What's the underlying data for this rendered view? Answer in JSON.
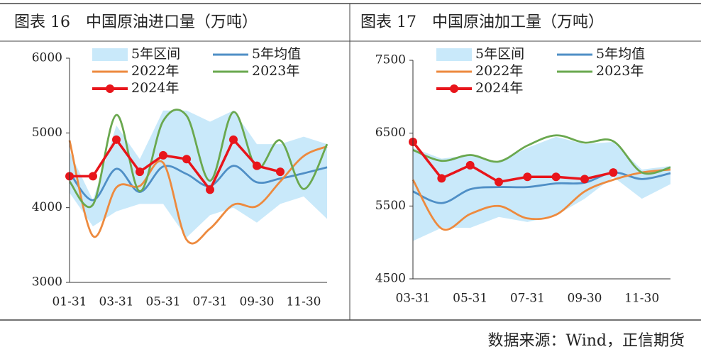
{
  "chart_data": [
    {
      "type": "line",
      "title": "图表 16　中国原油进口量（万吨）",
      "categories": [
        "01-31",
        null,
        "03-31",
        null,
        "05-31",
        null,
        "07-31",
        null,
        "09-30",
        null,
        "11-30",
        null
      ],
      "ylim": [
        3000,
        6000
      ],
      "yticks": [
        3000,
        4000,
        5000,
        6000
      ],
      "series": [
        {
          "name": "5年区间",
          "type": "band",
          "color": "#c9e9fa",
          "low": [
            4200,
            3750,
            3950,
            4050,
            4050,
            3600,
            3900,
            4000,
            3800,
            4050,
            4150,
            3850
          ],
          "high": [
            4750,
            4100,
            5100,
            4650,
            5300,
            5300,
            5150,
            5300,
            4850,
            4850,
            4950,
            4850
          ]
        },
        {
          "name": "5年均值",
          "color": "#4f8fc6",
          "values": [
            4470,
            4100,
            4520,
            4210,
            4550,
            4450,
            4290,
            4560,
            4340,
            4390,
            4460,
            4540
          ]
        },
        {
          "name": "2022年",
          "color": "#ed8a3e",
          "values": [
            4900,
            3620,
            4270,
            4290,
            4600,
            3570,
            3720,
            4040,
            4020,
            4350,
            4690,
            4820
          ]
        },
        {
          "name": "2023年",
          "color": "#6aa84f",
          "values": [
            4350,
            4040,
            5240,
            4220,
            5160,
            5230,
            4360,
            5280,
            4530,
            4900,
            4250,
            4850
          ]
        },
        {
          "name": "2024年",
          "color": "#e8151b",
          "marker": true,
          "values": [
            4420,
            4420,
            4910,
            4480,
            4700,
            4650,
            4240,
            4910,
            4560,
            4480,
            null,
            null
          ]
        }
      ]
    },
    {
      "type": "line",
      "title": "图表 17　中国原油加工量（万吨）",
      "categories": [
        "03-31",
        null,
        "05-31",
        null,
        "07-31",
        null,
        "09-30",
        null,
        "11-30",
        null
      ],
      "ylim": [
        4500,
        7500
      ],
      "yticks": [
        4500,
        5500,
        6500,
        7500
      ],
      "series": [
        {
          "name": "5年区间",
          "type": "band",
          "color": "#c9e9fa",
          "low": [
            5020,
            5200,
            5200,
            5350,
            5280,
            5370,
            5600,
            5900,
            5600,
            5800
          ],
          "high": [
            6300,
            6150,
            6200,
            6100,
            6300,
            6450,
            6350,
            6380,
            6000,
            6050
          ]
        },
        {
          "name": "5年均值",
          "color": "#4f8fc6",
          "values": [
            5700,
            5540,
            5730,
            5760,
            5760,
            5810,
            5820,
            5960,
            5870,
            5950
          ]
        },
        {
          "name": "2022年",
          "color": "#ed8a3e",
          "values": [
            5860,
            5190,
            5390,
            5500,
            5330,
            5380,
            5700,
            5860,
            5960,
            6000
          ]
        },
        {
          "name": "2023年",
          "color": "#6aa84f",
          "values": [
            6270,
            6120,
            6200,
            6110,
            6330,
            6470,
            6370,
            6390,
            5960,
            6030
          ]
        },
        {
          "name": "2024年",
          "color": "#e8151b",
          "marker": true,
          "values": [
            6380,
            5880,
            6060,
            5830,
            5900,
            5900,
            5870,
            5960,
            null,
            null
          ]
        }
      ]
    }
  ],
  "source": "数据来源：Wind，正信期货"
}
